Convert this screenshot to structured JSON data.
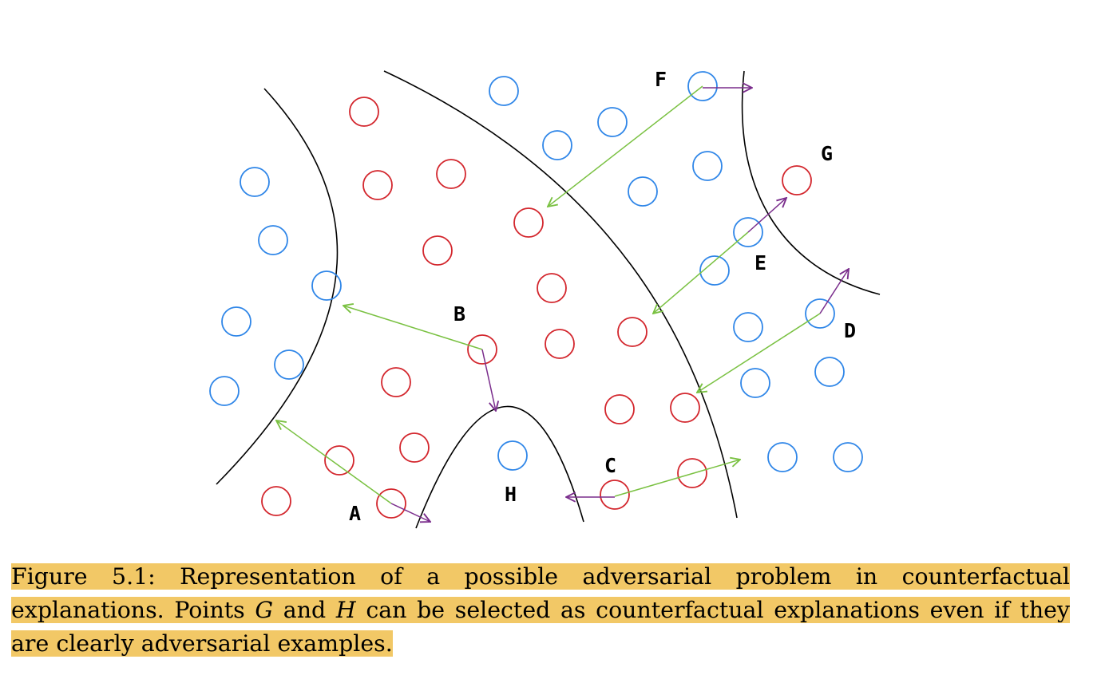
{
  "figure": {
    "colors": {
      "class_a_circle": "#2f86e8",
      "class_b_circle": "#d3262d",
      "boundary": "#000000",
      "counterfactual_arrow": "#7ac142",
      "adversarial_arrow": "#7a2d8c",
      "caption_highlight": "#f2c866"
    },
    "labels": {
      "A": "A",
      "B": "B",
      "C": "C",
      "D": "D",
      "E": "E",
      "F": "F",
      "G": "G",
      "H": "H"
    }
  },
  "caption": {
    "part1": "Figure 5.1: Representation of a possible adversarial problem in counterfactual explanations. Points ",
    "point_g": "G",
    "part2": " and ",
    "point_h": "H",
    "part3": " can be selected as counterfactual explanations even if they are clearly adversarial examples."
  }
}
